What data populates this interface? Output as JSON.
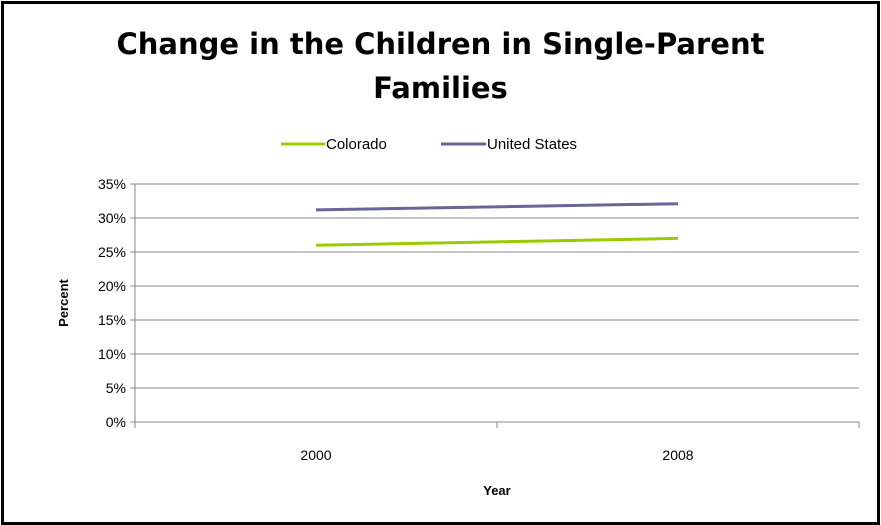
{
  "chart_data": {
    "type": "line",
    "title_lines": [
      "Change in the Children in Single-Parent",
      "Families"
    ],
    "xlabel": "Year",
    "ylabel": "Percent",
    "categories": [
      "2000",
      "2008"
    ],
    "ylim": [
      0,
      35
    ],
    "yticks": [
      0,
      5,
      10,
      15,
      20,
      25,
      30,
      35
    ],
    "ytick_labels": [
      "0%",
      "5%",
      "10%",
      "15%",
      "20%",
      "25%",
      "30%",
      "35%"
    ],
    "grid": true,
    "legend_position": "top",
    "series": [
      {
        "name": "Colorado",
        "values": [
          26,
          27
        ],
        "color": "#99cc00"
      },
      {
        "name": "United States",
        "values": [
          31.2,
          32.1
        ],
        "color": "#666699"
      }
    ]
  }
}
